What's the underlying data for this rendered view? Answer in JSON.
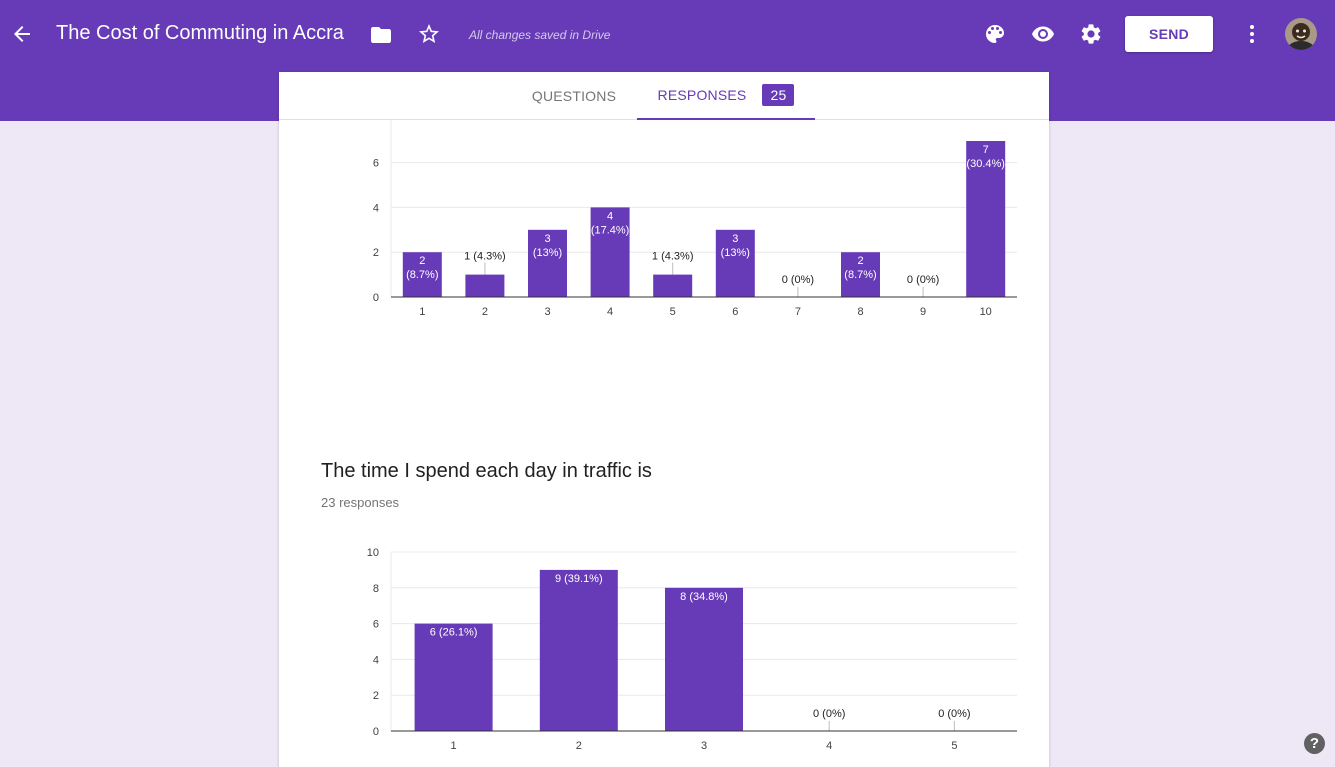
{
  "header": {
    "title": "The Cost of Commuting in Accra",
    "save_status": "All changes saved in Drive",
    "send_label": "SEND",
    "back_icon": "arrow-back-icon",
    "folder_icon": "folder-icon",
    "star_icon": "star-outline-icon",
    "palette_icon": "palette-icon",
    "preview_icon": "eye-icon",
    "settings_icon": "gear-icon",
    "more_icon": "more-vert-icon",
    "accent_color": "#673ab7"
  },
  "tabs": {
    "questions_label": "QUESTIONS",
    "responses_label": "RESPONSES",
    "responses_count": "25"
  },
  "question2": {
    "title": "The time I spend each day in traffic is",
    "responses_text": "23 responses"
  },
  "help_label": "?",
  "chart_data": [
    {
      "type": "bar",
      "categories": [
        "1",
        "2",
        "3",
        "4",
        "5",
        "6",
        "7",
        "8",
        "9",
        "10"
      ],
      "values": [
        2,
        1,
        3,
        4,
        1,
        3,
        0,
        2,
        0,
        7
      ],
      "labels": [
        "2 (8.7%)",
        "1 (4.3%)",
        "3 (13%)",
        "4 (17.4%)",
        "1 (4.3%)",
        "3 (13%)",
        "0 (0%)",
        "2 (8.7%)",
        "0 (0%)",
        "7 (30.4%)"
      ],
      "yticks": [
        0,
        2,
        4,
        6
      ],
      "ylim": [
        0,
        8
      ],
      "grid": true
    },
    {
      "type": "bar",
      "categories": [
        "1",
        "2",
        "3",
        "4",
        "5"
      ],
      "values": [
        6,
        9,
        8,
        0,
        0
      ],
      "labels": [
        "6 (26.1%)",
        "9 (39.1%)",
        "8 (34.8%)",
        "0 (0%)",
        "0 (0%)"
      ],
      "yticks": [
        0,
        2,
        4,
        6,
        8,
        10
      ],
      "ylim": [
        0,
        10
      ],
      "grid": true
    }
  ]
}
